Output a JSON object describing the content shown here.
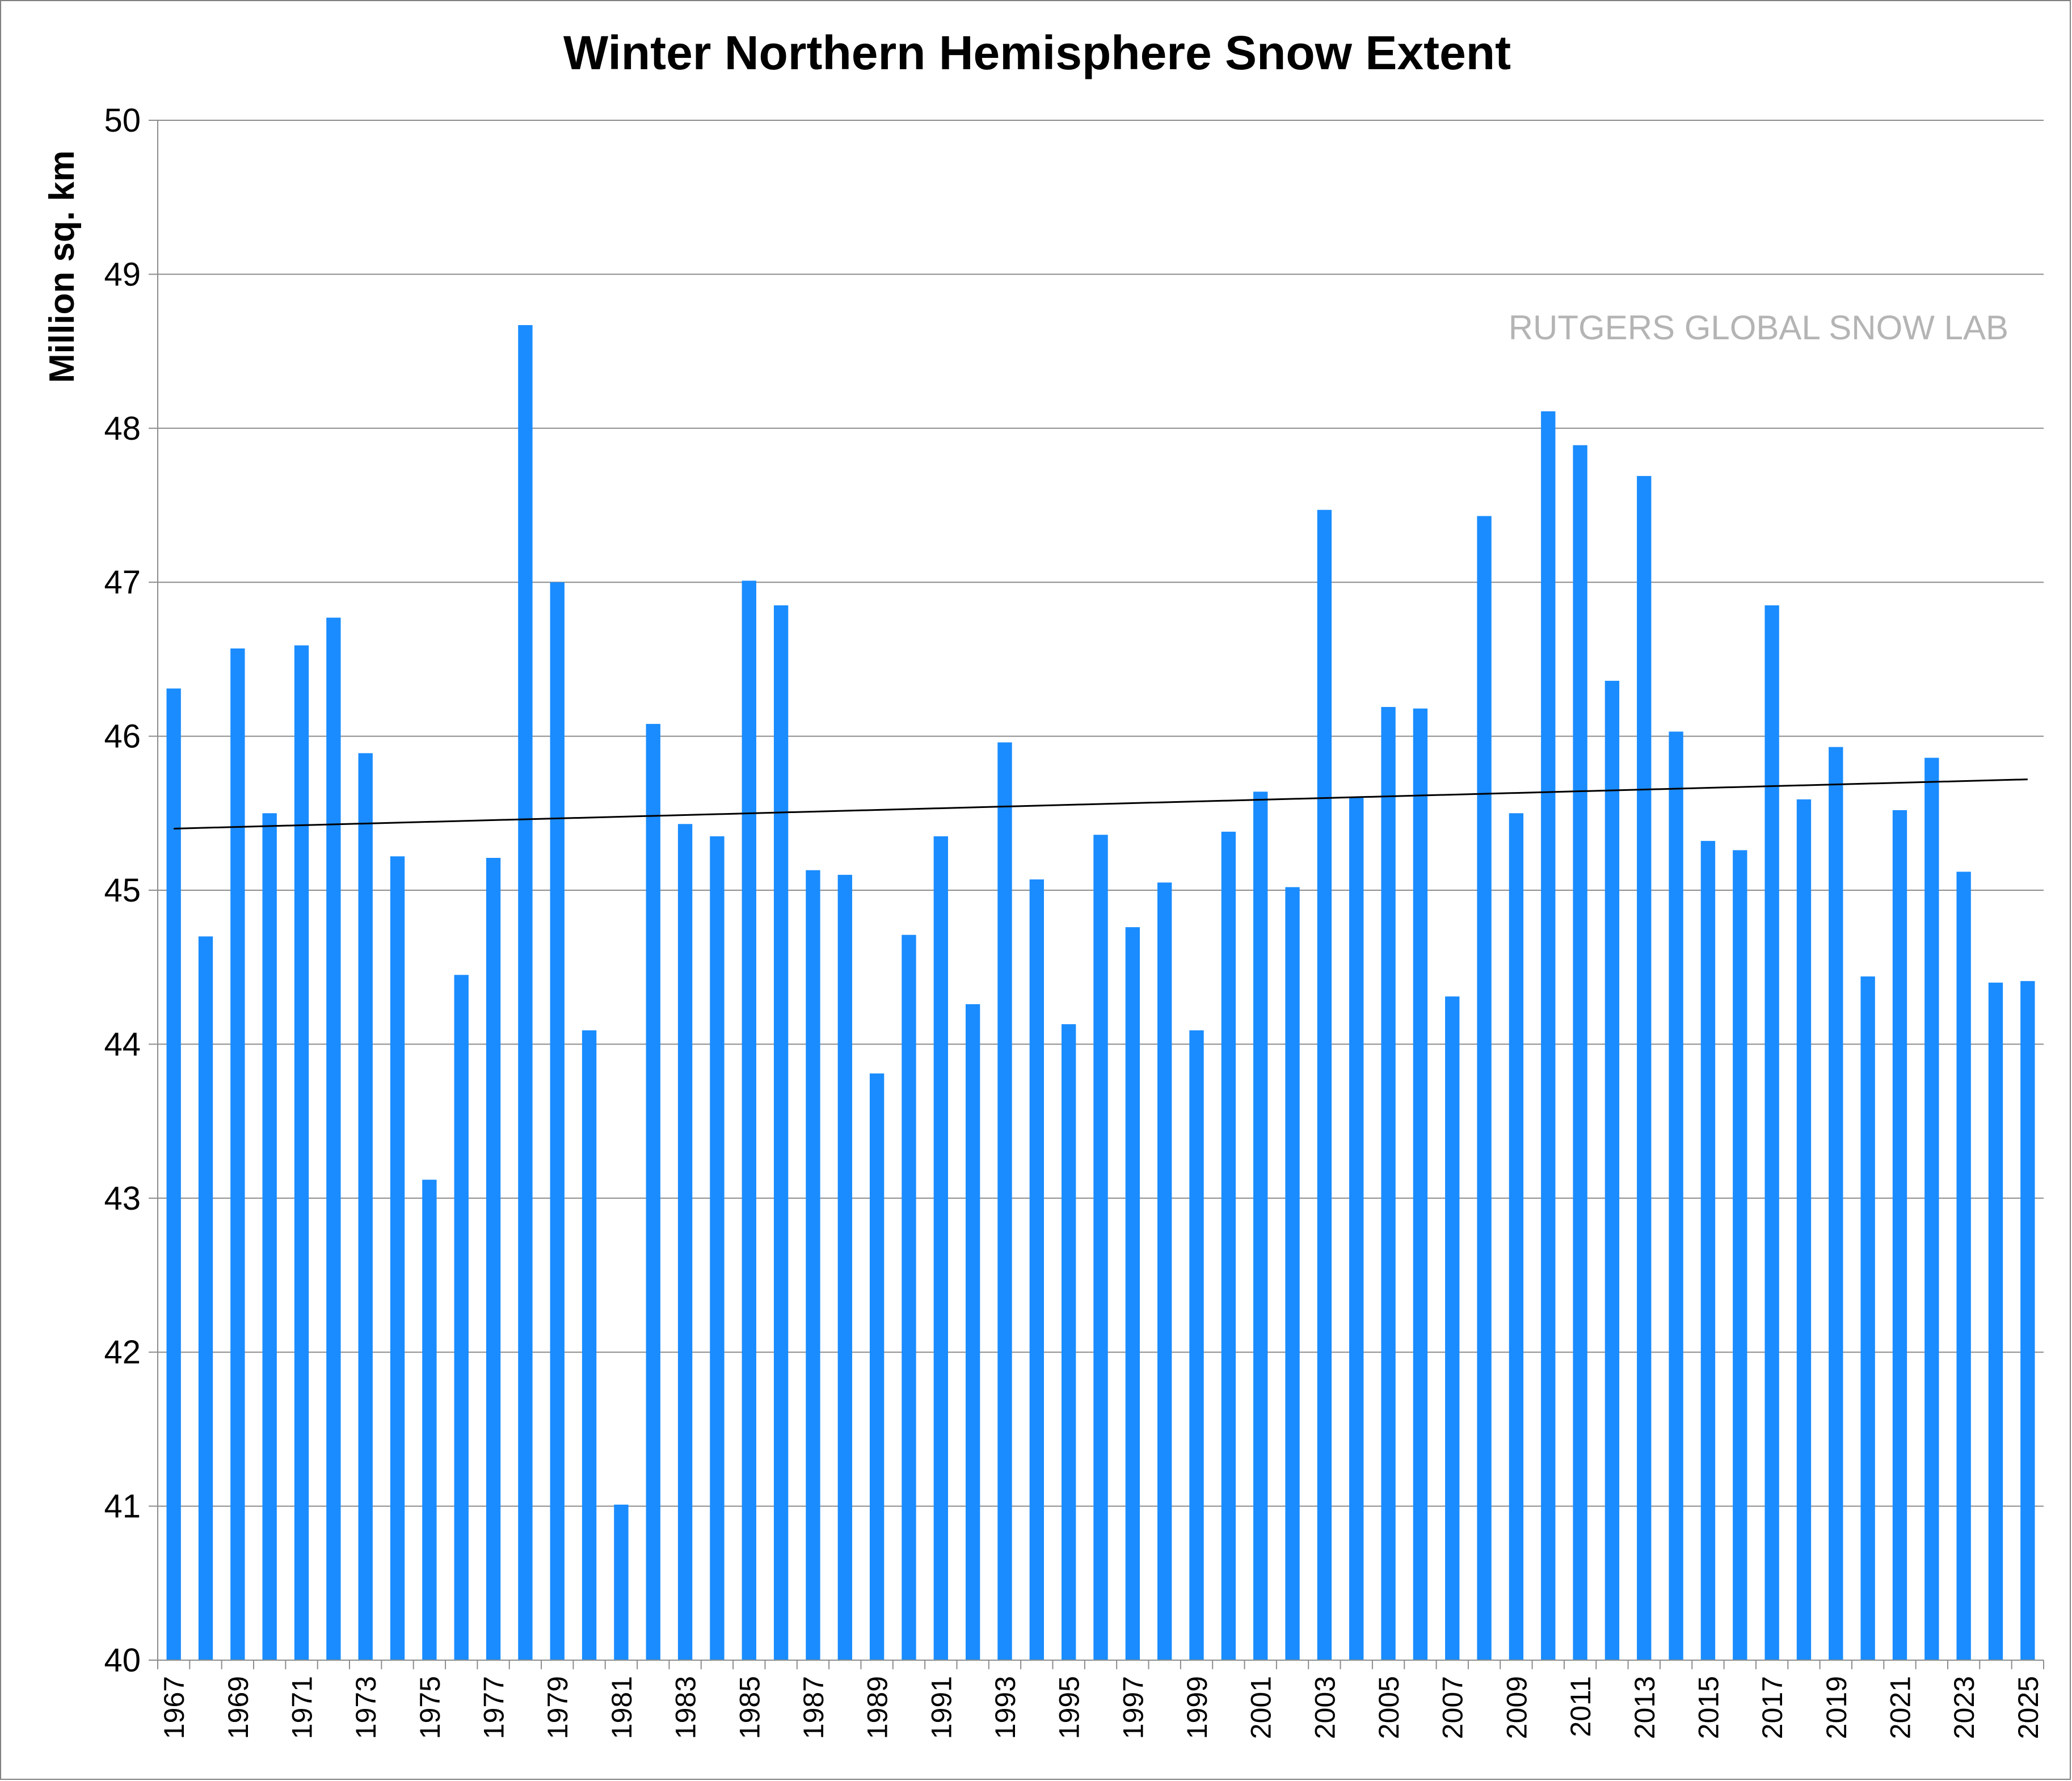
{
  "chart_data": {
    "type": "bar",
    "title": "Winter Northern Hemisphere Snow Extent",
    "ylabel": "Million sq. km",
    "xlabel": "",
    "ylim": [
      40,
      50
    ],
    "yticks": [
      40,
      41,
      42,
      43,
      44,
      45,
      46,
      47,
      48,
      49,
      50
    ],
    "grid": true,
    "bar_color": "#1a8cff",
    "trendline": {
      "color": "#000000",
      "start": 45.4,
      "end": 45.72
    },
    "watermark": "RUTGERS GLOBAL SNOW LAB",
    "categories": [
      "1967",
      "1968",
      "1969",
      "1970",
      "1971",
      "1972",
      "1973",
      "1974",
      "1975",
      "1976",
      "1977",
      "1978",
      "1979",
      "1980",
      "1981",
      "1982",
      "1983",
      "1984",
      "1985",
      "1986",
      "1987",
      "1988",
      "1989",
      "1990",
      "1991",
      "1992",
      "1993",
      "1994",
      "1995",
      "1996",
      "1997",
      "1998",
      "1999",
      "2000",
      "2001",
      "2002",
      "2003",
      "2004",
      "2005",
      "2006",
      "2007",
      "2008",
      "2009",
      "2010",
      "2011",
      "2012",
      "2013",
      "2014",
      "2015",
      "2016",
      "2017",
      "2018",
      "2019",
      "2020",
      "2021",
      "2022",
      "2023",
      "2024",
      "2025"
    ],
    "xtick_labels": [
      "1967",
      "",
      "1969",
      "",
      "1971",
      "",
      "1973",
      "",
      "1975",
      "",
      "1977",
      "",
      "1979",
      "",
      "1981",
      "",
      "1983",
      "",
      "1985",
      "",
      "1987",
      "",
      "1989",
      "",
      "1991",
      "",
      "1993",
      "",
      "1995",
      "",
      "1997",
      "",
      "1999",
      "",
      "2001",
      "",
      "2003",
      "",
      "2005",
      "",
      "2007",
      "",
      "2009",
      "",
      "2011",
      "",
      "2013",
      "",
      "2015",
      "",
      "2017",
      "",
      "2019",
      "",
      "2021",
      "",
      "2023",
      "",
      "2025"
    ],
    "values": [
      46.31,
      44.7,
      46.57,
      45.5,
      46.59,
      46.77,
      45.89,
      45.22,
      43.12,
      44.45,
      45.21,
      48.67,
      47.0,
      44.09,
      41.01,
      46.08,
      45.43,
      45.35,
      47.01,
      46.85,
      45.13,
      45.1,
      43.81,
      44.71,
      45.35,
      44.26,
      45.96,
      45.07,
      44.13,
      45.36,
      44.76,
      45.05,
      44.09,
      45.38,
      45.64,
      45.02,
      47.47,
      45.6,
      46.19,
      46.18,
      44.31,
      47.43,
      45.5,
      48.11,
      47.89,
      46.36,
      47.69,
      46.03,
      45.32,
      45.26,
      46.85,
      45.59,
      45.93,
      44.44,
      45.52,
      45.86,
      45.12,
      44.4,
      44.41
    ]
  }
}
